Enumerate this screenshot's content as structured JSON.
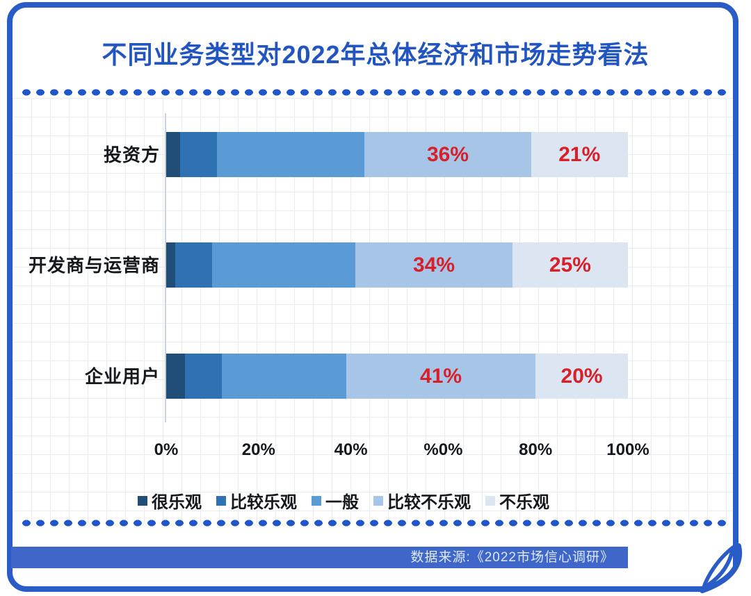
{
  "title": "不同业务类型对2022年总体经济和市场走势看法",
  "source_note": "数据来源:《2022市场信心调研》",
  "colors": {
    "accent_blue": "#2a5cc8",
    "title_blue": "#2355c0",
    "dotted_blue": "#1f57cb",
    "band_blue": "#3f66c9",
    "label_red": "#d8202a"
  },
  "chart_data": {
    "type": "bar",
    "orientation": "horizontal",
    "stacked": true,
    "unit": "%",
    "xlim": [
      0,
      100
    ],
    "x_tick_labels": [
      "0%",
      "20%",
      "40%",
      "%0%",
      "80%",
      "100%"
    ],
    "categories": [
      "投资方",
      "开发商与运营商",
      "企业用户"
    ],
    "series": [
      {
        "name": "很乐观",
        "color": "#204e78",
        "values": [
          3,
          2,
          4
        ],
        "labels_shown": false
      },
      {
        "name": "比较乐观",
        "color": "#2e72b3",
        "values": [
          8,
          8,
          8
        ],
        "labels_shown": false
      },
      {
        "name": "一般",
        "color": "#5a9ad5",
        "values": [
          32,
          31,
          27
        ],
        "labels_shown": false
      },
      {
        "name": "比较不乐观",
        "color": "#a7c5e6",
        "values": [
          36,
          34,
          41
        ],
        "labels_shown": true
      },
      {
        "name": "不乐观",
        "color": "#dce5f2",
        "values": [
          21,
          25,
          20
        ],
        "labels_shown": true
      }
    ],
    "data_labels": {
      "format": "{value}%",
      "color": "#d8202a",
      "shown_for": [
        "比较不乐观",
        "不乐观"
      ]
    },
    "legend_position": "bottom",
    "grid": true
  }
}
